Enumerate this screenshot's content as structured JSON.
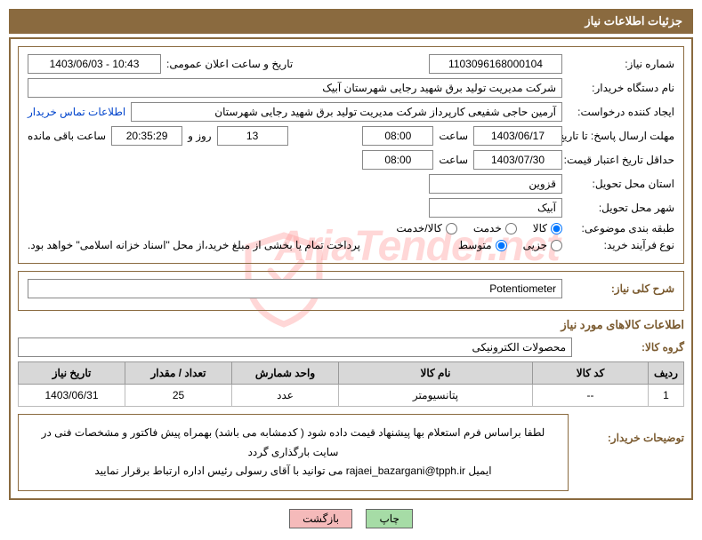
{
  "titleBar": "جزئیات اطلاعات نیاز",
  "watermark": "AriaTender.net",
  "labels": {
    "need_no": "شماره نیاز:",
    "announce_dt": "تاریخ و ساعت اعلان عمومی:",
    "buyer_org": "نام دستگاه خریدار:",
    "requester": "ایجاد کننده درخواست:",
    "reply_deadline": "مهلت ارسال پاسخ: تا تاریخ:",
    "hour": "ساعت",
    "days_and": "روز و",
    "time_left": "ساعت باقی مانده",
    "min_valid": "حداقل تاریخ اعتبار قیمت: تا تاریخ:",
    "province": "استان محل تحویل:",
    "city": "شهر محل تحویل:",
    "subject_cat": "طبقه بندی موضوعی:",
    "purchase_type": "نوع فرآیند خرید:",
    "need_desc_lbl": "شرح کلی نیاز:",
    "items_info": "اطلاعات کالاهای مورد نیاز",
    "product_group": "گروه کالا:",
    "buyer_notes": "توضیحات خریدار:"
  },
  "values": {
    "need_no": "1103096168000104",
    "announce_dt": "1403/06/03 - 10:43",
    "buyer_org": "شرکت مدیریت تولید برق شهید رجایی شهرستان آبیک",
    "requester": "آرمین حاجی شفیعی کارپرداز شرکت مدیریت تولید برق شهید رجایی شهرستان",
    "contact_link": "اطلاعات تماس خریدار",
    "reply_date": "1403/06/17",
    "reply_time": "08:00",
    "days_left": "13",
    "hms_left": "20:35:29",
    "min_valid_date": "1403/07/30",
    "min_valid_time": "08:00",
    "province": "قزوین",
    "city": "آبیک",
    "need_desc": "Potentiometer",
    "product_group": "محصولات الکترونیکی",
    "payment_note": "پرداخت تمام یا بخشی از مبلغ خرید،از محل \"اسناد خزانه اسلامی\" خواهد بود.",
    "buyer_notes_1": "لطفا براساس فرم استعلام بها پیشنهاد قیمت داده شود ( کدمشابه می باشد) بهمراه پیش فاکتور و مشخصات فنی در سایت بارگذاری گردد",
    "buyer_notes_2_prefix": "ایمیل ",
    "buyer_notes_2_email": "rajaei_bazargani@tpph.ir",
    "buyer_notes_2_suffix": " می توانید با آقای رسولی رئیس اداره ارتباط برقرار نمایید"
  },
  "radios": {
    "subject": [
      {
        "label": "کالا",
        "checked": true
      },
      {
        "label": "خدمت",
        "checked": false
      },
      {
        "label": "کالا/خدمت",
        "checked": false
      }
    ],
    "purchase": [
      {
        "label": "جزیی",
        "checked": false
      },
      {
        "label": "متوسط",
        "checked": true
      }
    ]
  },
  "table": {
    "headers": [
      "ردیف",
      "کد کالا",
      "نام کالا",
      "واحد شمارش",
      "تعداد / مقدار",
      "تاریخ نیاز"
    ],
    "rows": [
      [
        "1",
        "--",
        "پتانسیومتر",
        "عدد",
        "25",
        "1403/06/31"
      ]
    ],
    "col_widths": [
      "40px",
      "130px",
      "auto",
      "120px",
      "120px",
      "120px"
    ]
  },
  "buttons": {
    "print": "چاپ",
    "back": "بازگشت"
  },
  "colors": {
    "brown": "#8a6a3f",
    "header_bg": "#d8d8d8",
    "btn_print": "#a6dca6",
    "btn_back": "#f5baba",
    "link": "#0044cc",
    "watermark": "#ff9090"
  }
}
